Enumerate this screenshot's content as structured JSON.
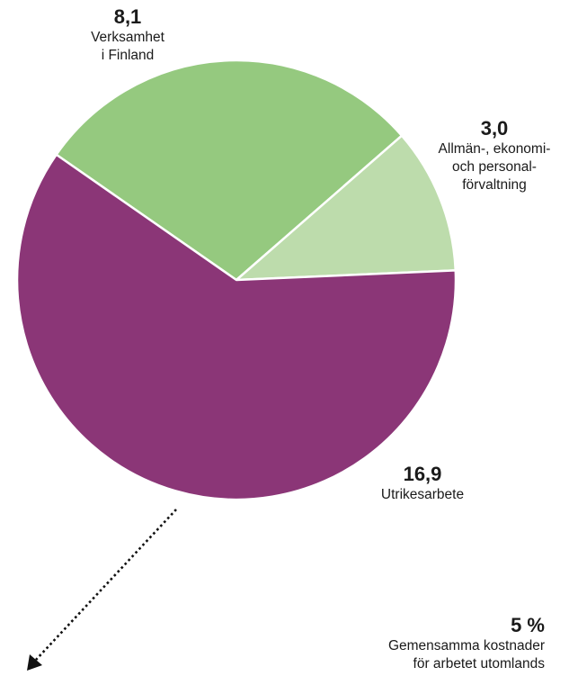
{
  "chart_data": {
    "type": "pie",
    "slices": [
      {
        "value_label": "8,1",
        "label_lines": [
          "Verksamhet",
          "i Finland"
        ],
        "value": 8.1,
        "color": "#95c97f"
      },
      {
        "value_label": "3,0",
        "label_lines": [
          "Allmän-, ekonomi-",
          "och personal-",
          "förvaltning"
        ],
        "value": 3.0,
        "color": "#bddcac"
      },
      {
        "value_label": "16,9",
        "label_lines": [
          "Utrikesarbete"
        ],
        "value": 16.9,
        "color": "#8b3677"
      }
    ],
    "annotation": {
      "value_label": "5 %",
      "label_lines": [
        "Gemensamma kostnader",
        "för arbetet utomlands"
      ]
    }
  }
}
